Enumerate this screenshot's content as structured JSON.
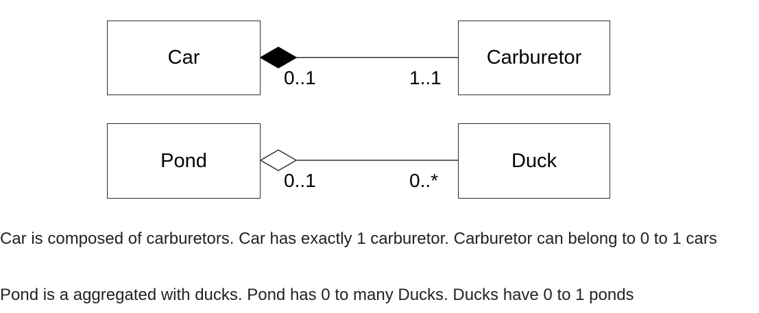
{
  "diagram": {
    "composition": {
      "whole": "Car",
      "part": "Carburetor",
      "whole_multiplicity": "0..1",
      "part_multiplicity": "1..1",
      "kind": "composition"
    },
    "aggregation": {
      "whole": "Pond",
      "part": "Duck",
      "whole_multiplicity": "0..1",
      "part_multiplicity": "0..*",
      "kind": "aggregation"
    }
  },
  "captions": {
    "composition": "Car is composed of carburetors. Car has exactly 1 carburetor. Carburetor can belong to 0 to 1 cars",
    "aggregation": "Pond is a aggregated with ducks. Pond has 0 to many Ducks. Ducks have 0 to 1 ponds"
  }
}
